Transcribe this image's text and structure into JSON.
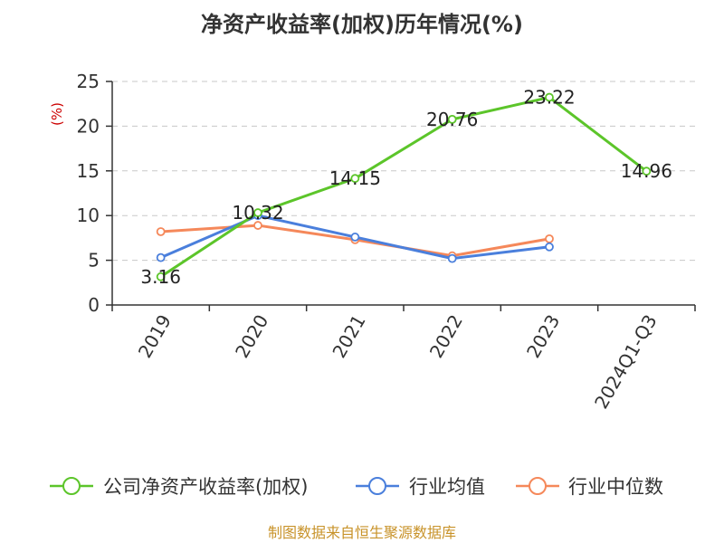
{
  "chart_data": {
    "type": "line",
    "title": "净资产收益率(加权)历年情况(%)",
    "ylabel": "(%)",
    "xlabel": "",
    "categories": [
      "2019",
      "2020",
      "2021",
      "2022",
      "2023",
      "2024Q1-Q3"
    ],
    "ylim": [
      0,
      25
    ],
    "yticks": [
      0,
      5,
      10,
      15,
      20,
      25
    ],
    "grid": "horizontal dashed",
    "legend_position": "bottom",
    "series": [
      {
        "name": "公司净资产收益率(加权)",
        "color": "#5cc52a",
        "values": [
          3.16,
          10.32,
          14.15,
          20.76,
          23.22,
          14.96
        ],
        "data_labels": [
          "3.16",
          "10.32",
          "14.15",
          "20.76",
          "23.22",
          "14.96"
        ]
      },
      {
        "name": "行业均值",
        "color": "#4a7fdc",
        "values": [
          5.3,
          10.0,
          7.6,
          5.2,
          6.5,
          null
        ]
      },
      {
        "name": "行业中位数",
        "color": "#f5885a",
        "values": [
          8.2,
          8.9,
          7.3,
          5.5,
          7.4,
          null
        ]
      }
    ],
    "source": "制图数据来自恒生聚源数据库"
  }
}
